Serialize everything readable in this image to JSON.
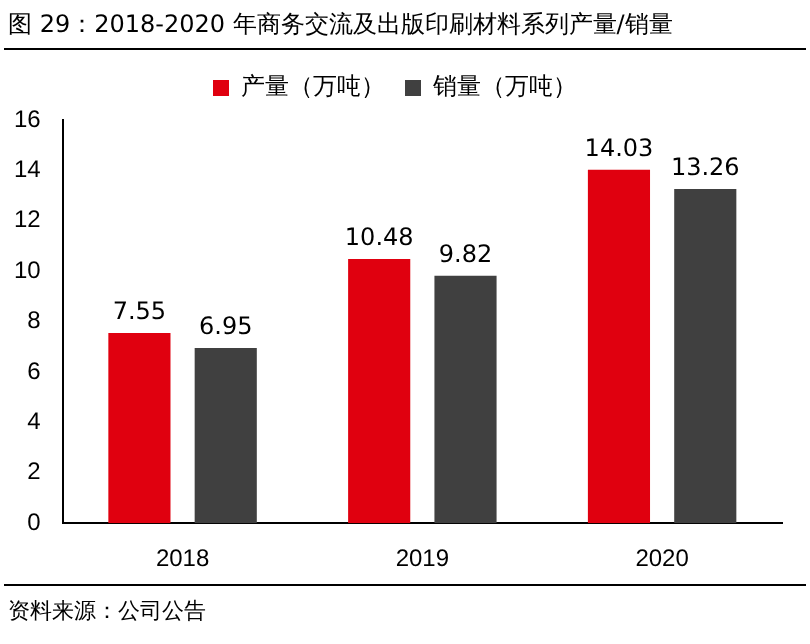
{
  "chart_data": {
    "type": "bar",
    "title": "图 29：2018-2020 年商务交流及出版印刷材料系列产量/销量",
    "categories": [
      "2018",
      "2019",
      "2020"
    ],
    "series": [
      {
        "name": "产量（万吨）",
        "color": "#e0000f",
        "values": [
          7.55,
          10.48,
          14.03
        ]
      },
      {
        "name": "销量（万吨）",
        "color": "#404040",
        "values": [
          6.95,
          9.82,
          13.26
        ]
      }
    ],
    "ylim": [
      0,
      16
    ],
    "yticks": [
      0,
      2,
      4,
      6,
      8,
      10,
      12,
      14,
      16
    ],
    "grid": false,
    "legend": "top",
    "data_labels": true,
    "annotations": [
      "资料来源：公司公告"
    ]
  }
}
